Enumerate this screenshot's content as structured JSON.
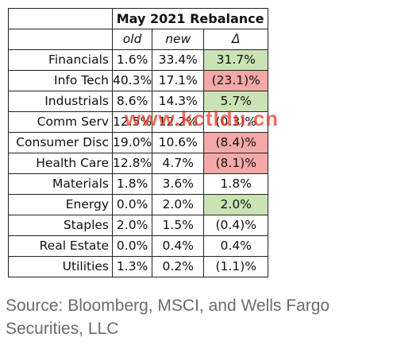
{
  "chart_data": {
    "type": "table",
    "title": "May 2021 Rebalance",
    "columns": [
      "old",
      "new",
      "Δ"
    ],
    "rows": [
      {
        "sector": "Financials",
        "old": "1.6%",
        "new": "33.4%",
        "delta": "31.7%",
        "highlight": "pos"
      },
      {
        "sector": "Info Tech",
        "old": "40.3%",
        "new": "17.1%",
        "delta": "(23.1)%",
        "highlight": "neg"
      },
      {
        "sector": "Industrials",
        "old": "8.6%",
        "new": "14.3%",
        "delta": "5.7%",
        "highlight": "pos"
      },
      {
        "sector": "Comm Serv",
        "old": "12.5%",
        "new": "12.2%",
        "delta": "(0.3)%",
        "highlight": ""
      },
      {
        "sector": "Consumer Disc",
        "old": "19.0%",
        "new": "10.6%",
        "delta": "(8.4)%",
        "highlight": "neg"
      },
      {
        "sector": "Health Care",
        "old": "12.8%",
        "new": "4.7%",
        "delta": "(8.1)%",
        "highlight": "neg"
      },
      {
        "sector": "Materials",
        "old": "1.8%",
        "new": "3.6%",
        "delta": "1.8%",
        "highlight": ""
      },
      {
        "sector": "Energy",
        "old": "0.0%",
        "new": "2.0%",
        "delta": "2.0%",
        "highlight": "pos"
      },
      {
        "sector": "Staples",
        "old": "2.0%",
        "new": "1.5%",
        "delta": "(0.4)%",
        "highlight": ""
      },
      {
        "sector": "Real Estate",
        "old": "0.0%",
        "new": "0.4%",
        "delta": "0.4%",
        "highlight": ""
      },
      {
        "sector": "Utilities",
        "old": "1.3%",
        "new": "0.2%",
        "delta": "(1.1)%",
        "highlight": ""
      }
    ],
    "colors": {
      "positive": "#c9e3b5",
      "negative": "#f4a8a8"
    }
  },
  "source": "Source: Bloomberg, MSCI, and Wells Fargo Securities, LLC",
  "watermark": "www.kctldu.cn"
}
